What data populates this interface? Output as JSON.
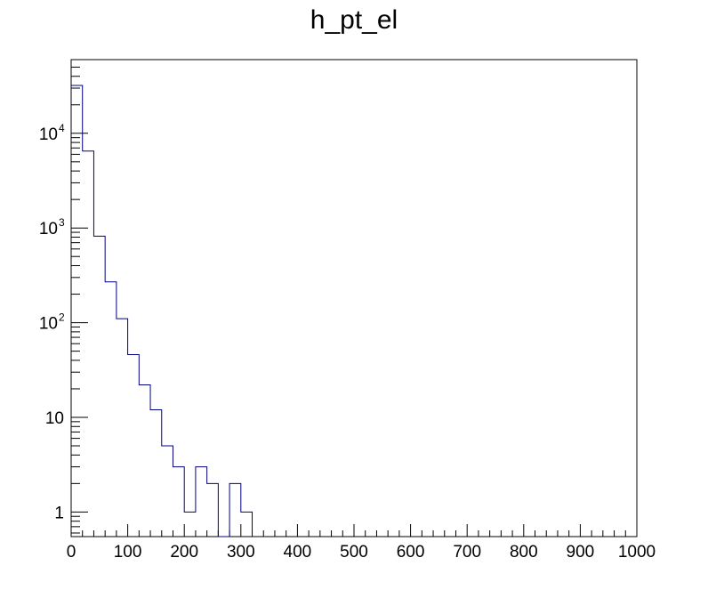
{
  "chart_data": {
    "type": "histogram",
    "title": "h_pt_el",
    "xlabel": "",
    "ylabel": "",
    "bin_width": 20,
    "bin_edges_start": 0,
    "values": [
      32000,
      6500,
      820,
      270,
      110,
      46,
      22,
      12,
      5,
      3,
      1,
      3,
      2,
      0,
      2,
      1
    ],
    "xlim": [
      0,
      1000
    ],
    "ylim": [
      0.55,
      60000
    ],
    "y_scale": "log",
    "x_ticks": [
      "0",
      "100",
      "200",
      "300",
      "400",
      "500",
      "600",
      "700",
      "800",
      "900",
      "1000"
    ],
    "y_ticks": [
      {
        "value": 1,
        "mantissa": "1",
        "exp": ""
      },
      {
        "value": 10,
        "mantissa": "10",
        "exp": ""
      },
      {
        "value": 100,
        "mantissa": "10",
        "exp": "2"
      },
      {
        "value": 1000,
        "mantissa": "10",
        "exp": "3"
      },
      {
        "value": 10000,
        "mantissa": "10",
        "exp": "4"
      }
    ],
    "line_color": "#000080",
    "grid": false,
    "legend": "none"
  }
}
